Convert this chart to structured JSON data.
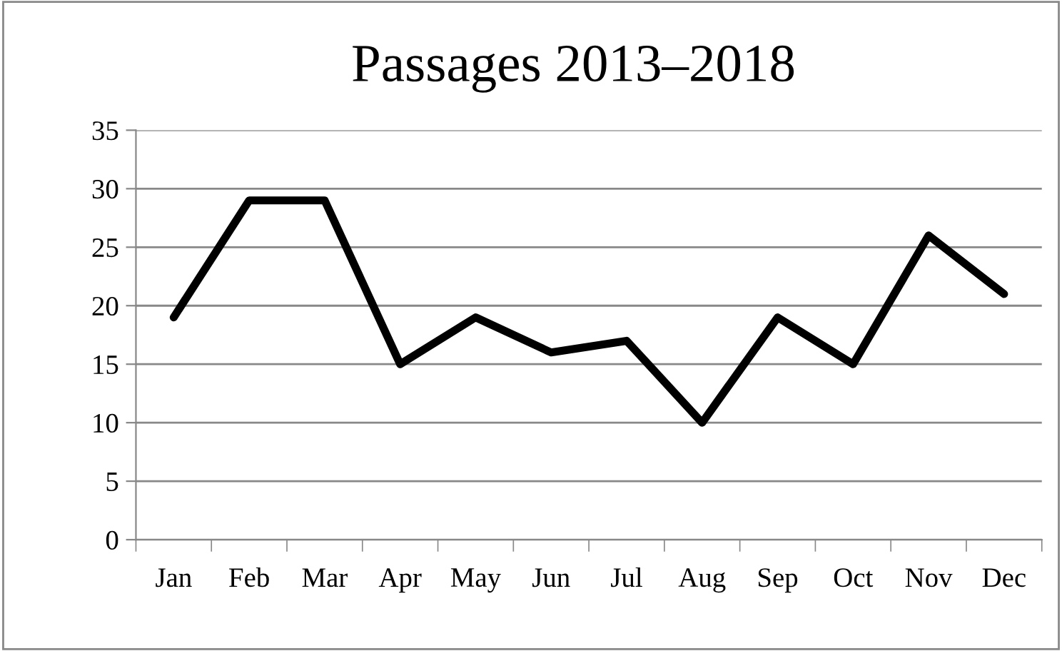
{
  "chart_data": {
    "type": "line",
    "title": "Passages 2013–2018",
    "categories": [
      "Jan",
      "Feb",
      "Mar",
      "Apr",
      "May",
      "Jun",
      "Jul",
      "Aug",
      "Sep",
      "Oct",
      "Nov",
      "Dec"
    ],
    "series": [
      {
        "color": "#000000",
        "values": [
          19,
          29,
          29,
          15,
          19,
          16,
          17,
          10,
          19,
          15,
          26,
          21
        ]
      }
    ],
    "ylim": [
      0,
      35
    ],
    "yticks": [
      0,
      5,
      10,
      15,
      20,
      25,
      30,
      35
    ],
    "grid": "y",
    "legend": false,
    "marker": "none",
    "line_style": "solid"
  }
}
